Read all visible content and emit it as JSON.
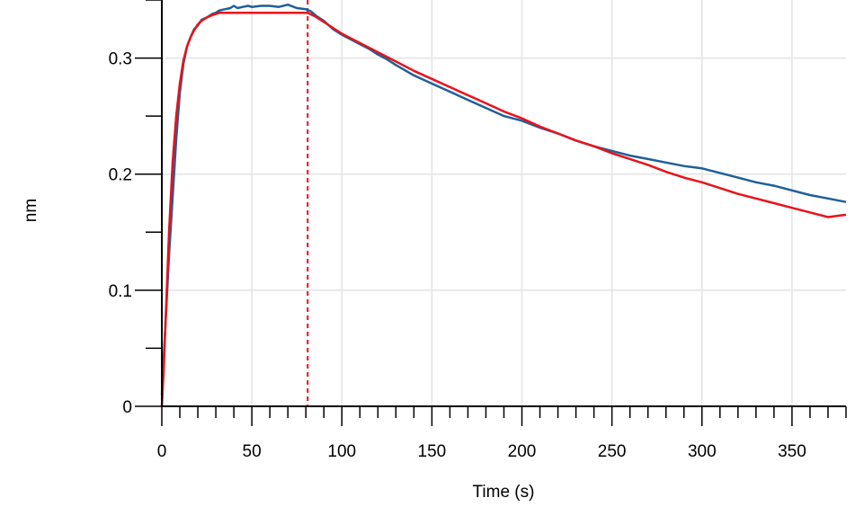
{
  "chart_data": {
    "type": "line",
    "title": "",
    "xlabel": "Time (s)",
    "ylabel": "nm",
    "xlim": [
      0,
      380
    ],
    "ylim": [
      0,
      0.35
    ],
    "x_ticks": [
      0,
      50,
      100,
      150,
      200,
      250,
      300,
      350
    ],
    "x_tick_labels": [
      "0",
      "50",
      "100",
      "150",
      "200",
      "250",
      "300",
      "350"
    ],
    "x_minor_tick_step": 10,
    "y_ticks": [
      0,
      0.1,
      0.2,
      0.3
    ],
    "y_tick_labels": [
      "0",
      "0.1",
      "0.2",
      "0.3"
    ],
    "y_minor_tick_step": 0.05,
    "grid": true,
    "vertical_markers": [
      0,
      81
    ],
    "colors": {
      "measured": "#1f5f99",
      "fit": "#e8121a",
      "marker": "#e8121a",
      "grid": "#e3e3e3"
    },
    "series": [
      {
        "kind": "measured",
        "x": [
          0,
          1,
          2,
          4,
          6,
          8,
          10,
          12,
          14,
          16,
          18,
          20,
          22,
          25,
          28,
          30,
          32,
          35,
          38,
          40,
          42,
          45,
          48,
          50,
          55,
          60,
          65,
          70,
          75,
          80,
          83,
          86,
          90,
          95,
          100,
          105,
          110,
          115,
          120,
          125,
          130,
          140,
          150,
          160,
          170,
          180,
          190,
          200,
          210,
          220,
          230,
          240,
          250,
          260,
          270,
          280,
          290,
          300,
          310,
          320,
          330,
          340,
          350,
          360,
          370,
          380
        ],
        "y": [
          0.01,
          0.04,
          0.07,
          0.13,
          0.18,
          0.23,
          0.27,
          0.295,
          0.31,
          0.318,
          0.325,
          0.328,
          0.333,
          0.335,
          0.338,
          0.339,
          0.341,
          0.342,
          0.343,
          0.345,
          0.343,
          0.344,
          0.345,
          0.344,
          0.345,
          0.345,
          0.344,
          0.346,
          0.343,
          0.342,
          0.34,
          0.336,
          0.332,
          0.325,
          0.32,
          0.316,
          0.312,
          0.308,
          0.303,
          0.299,
          0.294,
          0.285,
          0.278,
          0.271,
          0.264,
          0.257,
          0.25,
          0.246,
          0.24,
          0.235,
          0.229,
          0.224,
          0.22,
          0.216,
          0.213,
          0.21,
          0.207,
          0.205,
          0.201,
          0.197,
          0.193,
          0.19,
          0.186,
          0.182,
          0.179,
          0.176
        ]
      },
      {
        "kind": "fit",
        "x": [
          0,
          1,
          2,
          4,
          6,
          8,
          10,
          12,
          14,
          16,
          18,
          20,
          22,
          25,
          28,
          30,
          32,
          35,
          38,
          40,
          42,
          45,
          48,
          50,
          55,
          60,
          65,
          70,
          75,
          80,
          81,
          85,
          90,
          95,
          100,
          110,
          120,
          130,
          140,
          150,
          160,
          170,
          180,
          190,
          200,
          210,
          220,
          230,
          240,
          250,
          260,
          270,
          280,
          290,
          300,
          310,
          320,
          330,
          340,
          350,
          360,
          370,
          380
        ],
        "y": [
          0,
          0.03,
          0.07,
          0.15,
          0.21,
          0.25,
          0.278,
          0.298,
          0.31,
          0.318,
          0.324,
          0.329,
          0.332,
          0.335,
          0.337,
          0.338,
          0.339,
          0.339,
          0.339,
          0.339,
          0.339,
          0.339,
          0.339,
          0.339,
          0.339,
          0.339,
          0.339,
          0.339,
          0.339,
          0.339,
          0.339,
          0.336,
          0.331,
          0.326,
          0.321,
          0.313,
          0.305,
          0.297,
          0.289,
          0.282,
          0.275,
          0.268,
          0.261,
          0.254,
          0.248,
          0.241,
          0.235,
          0.229,
          0.224,
          0.218,
          0.213,
          0.208,
          0.202,
          0.197,
          0.193,
          0.188,
          0.183,
          0.179,
          0.175,
          0.171,
          0.167,
          0.163,
          0.165
        ]
      }
    ]
  }
}
